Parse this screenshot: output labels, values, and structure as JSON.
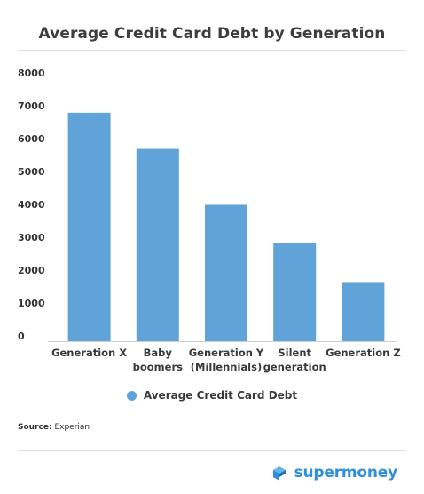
{
  "title": "Average Credit Card Debt by Generation",
  "chart_data": {
    "type": "bar",
    "title": "Average Credit Card Debt by Generation",
    "categories": [
      [
        "Generation X"
      ],
      [
        "Baby",
        "boomers"
      ],
      [
        "Generation Y",
        "(Millennials)"
      ],
      [
        "Silent",
        "generation"
      ],
      [
        "Generation Z"
      ]
    ],
    "series": [
      {
        "name": "Average Credit Card Debt",
        "values": [
          6950,
          5850,
          4150,
          3000,
          1800
        ]
      }
    ],
    "yticks": [
      "0",
      "1000",
      "2000",
      "3000",
      "4000",
      "5000",
      "6000",
      "7000",
      "8000"
    ],
    "ylim": [
      0,
      8000
    ],
    "grid": false,
    "legend": "bottom-center",
    "bar_color": "#5fa3d9"
  },
  "legend": {
    "label": "Average Credit Card Debt",
    "color": "#5fa3d9"
  },
  "source": {
    "label": "Source:",
    "value": "Experian"
  },
  "brand": {
    "name": "supermoney",
    "color": "#2f8fd8",
    "icon": "supermoney-logo-icon"
  }
}
